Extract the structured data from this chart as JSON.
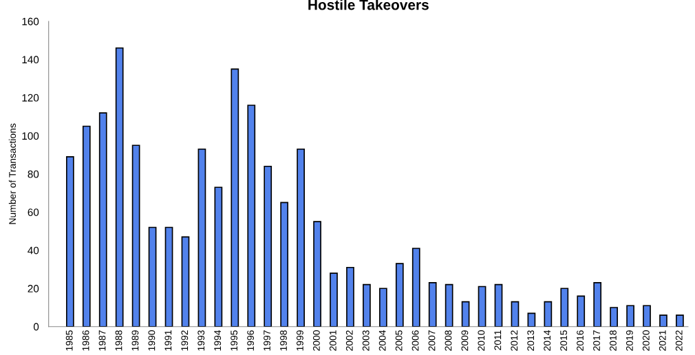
{
  "chart_data": {
    "type": "bar",
    "title": "Hostile Takeovers",
    "ylabel": "Number of Transactions",
    "categories": [
      "1985",
      "1986",
      "1987",
      "1988",
      "1989",
      "1990",
      "1991",
      "1992",
      "1993",
      "1994",
      "1995",
      "1996",
      "1997",
      "1998",
      "1999",
      "2000",
      "2001",
      "2002",
      "2003",
      "2004",
      "2005",
      "2006",
      "2007",
      "2008",
      "2009",
      "2010",
      "2011",
      "2012",
      "2013",
      "2014",
      "2015",
      "2016",
      "2017",
      "2018",
      "2019",
      "2020",
      "2021",
      "2022"
    ],
    "values": [
      89,
      105,
      112,
      146,
      95,
      52,
      52,
      47,
      93,
      73,
      135,
      116,
      84,
      65,
      93,
      55,
      28,
      31,
      22,
      20,
      33,
      41,
      23,
      22,
      13,
      21,
      22,
      13,
      7,
      13,
      20,
      16,
      23,
      10,
      11,
      11,
      6,
      6
    ],
    "color": "#5282ec",
    "ylim": [
      0,
      160
    ],
    "yticks": [
      0,
      20,
      40,
      60,
      80,
      100,
      120,
      140,
      160
    ],
    "grid": false,
    "legend": false
  }
}
